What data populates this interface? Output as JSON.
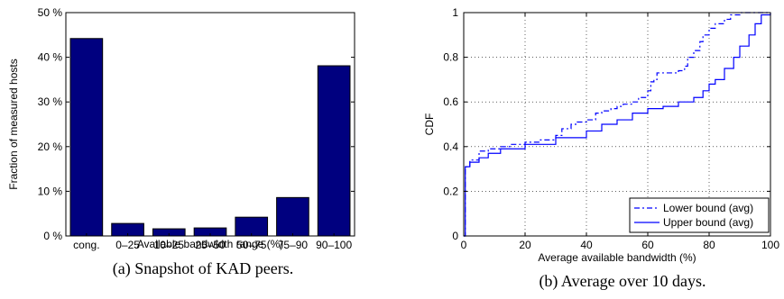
{
  "chart_data": [
    {
      "type": "bar",
      "caption": "(a)  Snapshot of KAD peers.",
      "xlabel": "Available bandwidth range (%)",
      "ylabel": "Fraction of measured hosts",
      "categories": [
        "cong.",
        "0–25",
        "10–25",
        "25–50",
        "50–75",
        "75–90",
        "90–100"
      ],
      "values": [
        44.2,
        2.8,
        1.6,
        1.8,
        4.2,
        8.6,
        38.1
      ],
      "ylim": [
        0,
        50
      ],
      "yticks": [
        0,
        10,
        20,
        30,
        40,
        50
      ],
      "ytick_labels": [
        "0 %",
        "10 %",
        "20 %",
        "30 %",
        "40 %",
        "50 %"
      ],
      "bar_color": "#00007f",
      "grid": false
    },
    {
      "type": "line",
      "caption": "(b)  Average over 10 days.",
      "xlabel": "Average available bandwidth (%)",
      "ylabel": "CDF",
      "xlim": [
        0,
        100
      ],
      "ylim": [
        0,
        1
      ],
      "xticks": [
        0,
        20,
        40,
        60,
        80,
        100
      ],
      "yticks": [
        0,
        0.2,
        0.4,
        0.6,
        0.8,
        1
      ],
      "xtick_labels": [
        "0",
        "20",
        "40",
        "60",
        "80",
        "100"
      ],
      "ytick_labels": [
        "0",
        "0.2",
        "0.4",
        "0.6",
        "0.8",
        "1"
      ],
      "grid": true,
      "legend_position": "bottom-right",
      "series": [
        {
          "name": "Lower bound (avg)",
          "style": "dashdot",
          "color": "#0000ff",
          "step": true,
          "x": [
            0,
            0.5,
            2,
            5,
            8,
            12,
            15,
            20,
            25,
            30,
            32,
            35,
            37,
            40,
            43,
            45,
            48,
            50,
            52,
            55,
            57,
            60,
            61,
            62,
            63,
            70,
            72,
            73,
            75,
            77,
            78,
            80,
            82,
            85,
            87,
            90,
            95,
            100
          ],
          "y": [
            0,
            0.31,
            0.34,
            0.38,
            0.39,
            0.4,
            0.41,
            0.42,
            0.43,
            0.45,
            0.48,
            0.5,
            0.51,
            0.52,
            0.55,
            0.56,
            0.57,
            0.58,
            0.59,
            0.6,
            0.62,
            0.65,
            0.69,
            0.7,
            0.73,
            0.74,
            0.76,
            0.8,
            0.83,
            0.87,
            0.9,
            0.93,
            0.95,
            0.97,
            0.99,
            1.0,
            1.0,
            1.0
          ]
        },
        {
          "name": "Upper bound (avg)",
          "style": "solid",
          "color": "#0000ff",
          "step": true,
          "x": [
            0,
            0.5,
            2,
            5,
            8,
            12,
            20,
            30,
            40,
            45,
            50,
            55,
            60,
            65,
            70,
            75,
            78,
            80,
            82,
            85,
            88,
            90,
            93,
            95,
            97,
            100
          ],
          "y": [
            0,
            0.31,
            0.33,
            0.35,
            0.37,
            0.39,
            0.41,
            0.44,
            0.47,
            0.5,
            0.52,
            0.55,
            0.57,
            0.58,
            0.6,
            0.62,
            0.65,
            0.68,
            0.7,
            0.75,
            0.8,
            0.85,
            0.9,
            0.95,
            0.99,
            1.0
          ]
        }
      ]
    }
  ]
}
